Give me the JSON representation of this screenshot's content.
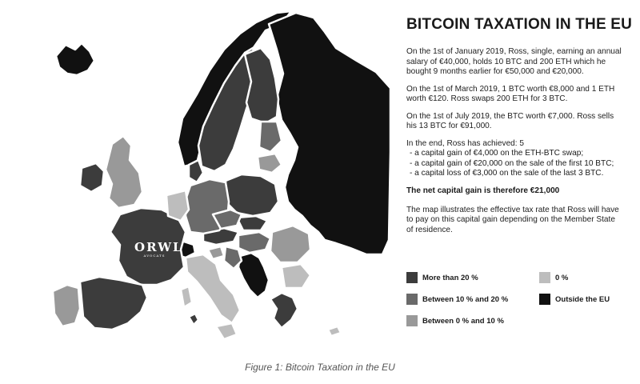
{
  "figure": {
    "title": "BITCOIN TAXATION IN THE EU",
    "paragraphs": [
      "On the 1st of January 2019, Ross, single, earning an annual salary of €40,000, holds 10 BTC and 200 ETH which he bought 9 months earlier for €50,000 and €20,000.",
      "On the 1st of March 2019, 1 BTC worth €8,000 and 1 ETH worth €120. Ross swaps 200 ETH for 3 BTC.",
      "On the 1st of July 2019, the BTC worth €7,000. Ross sells his 13 BTC for €91,000.",
      "In the end, Ross has achieved: 5"
    ],
    "achieved": [
      "- a capital gain of €4,000 on the ETH-BTC swap;",
      "- a capital gain of €20,000 on the sale of the first 10 BTC;",
      "- a capital loss of €3,000 on the sale of the last 3 BTC."
    ],
    "net_gain": "The net capital gain is therefore €21,000",
    "map_note": "The map illustrates the effective tax rate that Ross will have to pay on this capital gain depending on the Member State of residence.",
    "caption": "Figure 1: Bitcoin Taxation in the EU",
    "brand": {
      "name": "ORWL",
      "sub": "AVOCATS"
    }
  },
  "legend": [
    {
      "label": "More than 20 %",
      "color": "#3c3c3c"
    },
    {
      "label": "Between 10 % and 20 %",
      "color": "#6a6a6a"
    },
    {
      "label": "Between 0 % and 10 %",
      "color": "#999999"
    },
    {
      "label": "0 %",
      "color": "#bdbdbd"
    },
    {
      "label": "Outside the EU",
      "color": "#111111"
    }
  ],
  "colors": {
    "more_than_20": "#3c3c3c",
    "between_10_20": "#6a6a6a",
    "between_0_10": "#999999",
    "zero": "#bdbdbd",
    "outside_eu": "#111111"
  }
}
